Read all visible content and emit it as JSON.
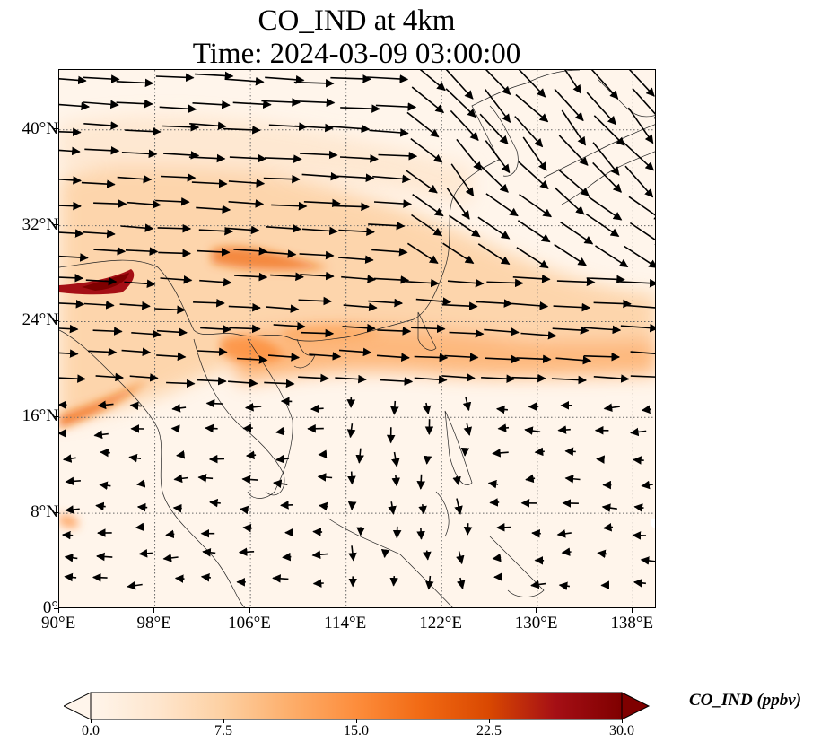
{
  "title_line1": "CO_IND at 4km",
  "title_line2": "Time: 2024-03-09 03:00:00",
  "map": {
    "lon_range": [
      90,
      140
    ],
    "lat_range": [
      0,
      45
    ],
    "lon_ticks": [
      {
        "value": 90,
        "label": "90°E"
      },
      {
        "value": 98,
        "label": "98°E"
      },
      {
        "value": 106,
        "label": "106°E"
      },
      {
        "value": 114,
        "label": "114°E"
      },
      {
        "value": 122,
        "label": "122°E"
      },
      {
        "value": 130,
        "label": "130°E"
      },
      {
        "value": 138,
        "label": "138°E"
      }
    ],
    "lat_ticks": [
      {
        "value": 0,
        "label": "0°"
      },
      {
        "value": 8,
        "label": "8°N"
      },
      {
        "value": 16,
        "label": "16°N"
      },
      {
        "value": 24,
        "label": "24°N"
      },
      {
        "value": 32,
        "label": "32°N"
      },
      {
        "value": 40,
        "label": "40°N"
      }
    ],
    "gridlines": "dotted",
    "field_colors": {
      "low": "#fff5eb",
      "mid": "#fdae6b",
      "high": "#7f0000"
    }
  },
  "colorbar": {
    "label": "CO_IND (ppbv)",
    "min": 0,
    "max": 30,
    "extend": "both",
    "ticks": [
      {
        "value": 0,
        "label": "0.0"
      },
      {
        "value": 7.5,
        "label": "7.5"
      },
      {
        "value": 15,
        "label": "15.0"
      },
      {
        "value": 22.5,
        "label": "22.5"
      },
      {
        "value": 30,
        "label": "30.0"
      }
    ],
    "colormap": [
      "#fff5eb",
      "#fee6ce",
      "#fdd0a2",
      "#fdae6b",
      "#fd8d3c",
      "#f16913",
      "#d94801",
      "#a50f15",
      "#7f0000"
    ]
  }
}
